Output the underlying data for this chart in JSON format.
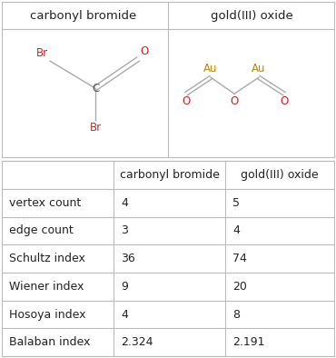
{
  "title1": "carbonyl bromide",
  "title2": "gold(III) oxide",
  "col_headers": [
    "",
    "carbonyl bromide",
    "gold(III) oxide"
  ],
  "rows": [
    [
      "vertex count",
      "4",
      "5"
    ],
    [
      "edge count",
      "3",
      "4"
    ],
    [
      "Schultz index",
      "36",
      "74"
    ],
    [
      "Wiener index",
      "9",
      "20"
    ],
    [
      "Hosoya index",
      "4",
      "8"
    ],
    [
      "Balaban index",
      "2.324",
      "2.191"
    ]
  ],
  "bg_color": "#ffffff",
  "border_color": "#bbbbbb",
  "text_color": "#222222",
  "br_color": "#cc2222",
  "o_color": "#cc2222",
  "c_color": "#555555",
  "au_color": "#b8860b",
  "bond_color": "#aaaaaa"
}
